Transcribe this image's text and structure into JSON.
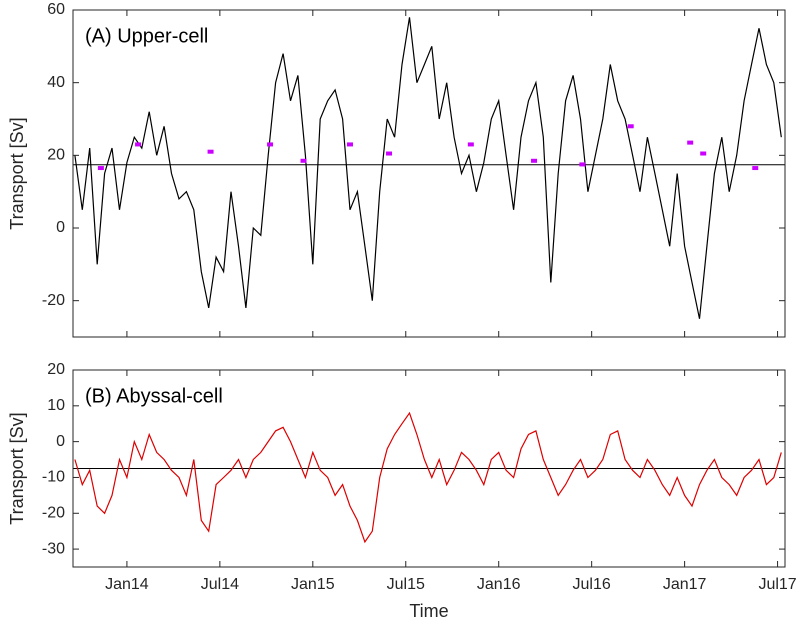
{
  "chart_data": [
    {
      "type": "line",
      "title": "(A) Upper-cell",
      "ylabel": "Transport [Sv]",
      "xlim": [
        2013.71,
        2017.54
      ],
      "ylim": [
        -30,
        60
      ],
      "yticks": [
        -20,
        0,
        20,
        40,
        60
      ],
      "reference_line": 17.4,
      "x": [
        2013.72,
        2013.76,
        2013.8,
        2013.84,
        2013.88,
        2013.92,
        2013.96,
        2014.0,
        2014.04,
        2014.08,
        2014.12,
        2014.16,
        2014.2,
        2014.24,
        2014.28,
        2014.32,
        2014.36,
        2014.4,
        2014.44,
        2014.48,
        2014.52,
        2014.56,
        2014.6,
        2014.64,
        2014.68,
        2014.72,
        2014.76,
        2014.8,
        2014.84,
        2014.88,
        2014.92,
        2014.96,
        2015.0,
        2015.04,
        2015.08,
        2015.12,
        2015.16,
        2015.2,
        2015.24,
        2015.28,
        2015.32,
        2015.36,
        2015.4,
        2015.44,
        2015.48,
        2015.52,
        2015.56,
        2015.6,
        2015.64,
        2015.68,
        2015.72,
        2015.76,
        2015.8,
        2015.84,
        2015.88,
        2015.92,
        2015.96,
        2016.0,
        2016.04,
        2016.08,
        2016.12,
        2016.16,
        2016.2,
        2016.24,
        2016.28,
        2016.32,
        2016.36,
        2016.4,
        2016.44,
        2016.48,
        2016.52,
        2016.56,
        2016.6,
        2016.64,
        2016.68,
        2016.72,
        2016.76,
        2016.8,
        2016.84,
        2016.88,
        2016.92,
        2016.96,
        2017.0,
        2017.04,
        2017.08,
        2017.12,
        2017.16,
        2017.2,
        2017.24,
        2017.28,
        2017.32,
        2017.36,
        2017.4,
        2017.44,
        2017.48,
        2017.52
      ],
      "series": [
        {
          "color": "#000000",
          "values": [
            20,
            5,
            22,
            -10,
            15,
            22,
            5,
            18,
            25,
            22,
            32,
            20,
            28,
            15,
            8,
            10,
            5,
            -12,
            -22,
            -8,
            -12,
            10,
            -5,
            -22,
            0,
            -2,
            20,
            40,
            48,
            35,
            42,
            20,
            -10,
            30,
            35,
            38,
            30,
            5,
            10,
            -5,
            -20,
            10,
            30,
            25,
            45,
            58,
            40,
            45,
            50,
            30,
            40,
            25,
            15,
            20,
            10,
            18,
            30,
            35,
            20,
            5,
            25,
            35,
            40,
            25,
            -15,
            15,
            35,
            42,
            30,
            10,
            20,
            30,
            45,
            35,
            30,
            20,
            10,
            25,
            15,
            5,
            -5,
            15,
            -5,
            -15,
            -25,
            -5,
            15,
            25,
            10,
            20,
            35,
            45,
            55,
            45,
            40,
            25
          ]
        }
      ],
      "markers": {
        "color": "#cc00ff",
        "x": [
          2013.86,
          2014.06,
          2014.45,
          2014.77,
          2014.95,
          2015.2,
          2015.41,
          2015.85,
          2016.19,
          2016.45,
          2016.71,
          2017.03,
          2017.1,
          2017.38
        ],
        "y": [
          16.5,
          23,
          21,
          23,
          18.5,
          23,
          20.5,
          23,
          18.5,
          17.5,
          28,
          23.5,
          20.5,
          16.5
        ]
      }
    },
    {
      "type": "line",
      "title": "(B) Abyssal-cell",
      "ylabel": "Transport [Sv]",
      "xlabel": "Time",
      "xlim": [
        2013.71,
        2017.54
      ],
      "ylim": [
        -35,
        20
      ],
      "yticks": [
        -30,
        -20,
        -10,
        0,
        10,
        20
      ],
      "xticks": [
        {
          "value": 2014.0,
          "label": "Jan14"
        },
        {
          "value": 2014.5,
          "label": "Jul14"
        },
        {
          "value": 2015.0,
          "label": "Jan15"
        },
        {
          "value": 2015.5,
          "label": "Jul15"
        },
        {
          "value": 2016.0,
          "label": "Jan16"
        },
        {
          "value": 2016.5,
          "label": "Jul16"
        },
        {
          "value": 2017.0,
          "label": "Jan17"
        },
        {
          "value": 2017.5,
          "label": "Jul17"
        }
      ],
      "reference_line": -7.5,
      "x": [
        2013.72,
        2013.76,
        2013.8,
        2013.84,
        2013.88,
        2013.92,
        2013.96,
        2014.0,
        2014.04,
        2014.08,
        2014.12,
        2014.16,
        2014.2,
        2014.24,
        2014.28,
        2014.32,
        2014.36,
        2014.4,
        2014.44,
        2014.48,
        2014.52,
        2014.56,
        2014.6,
        2014.64,
        2014.68,
        2014.72,
        2014.76,
        2014.8,
        2014.84,
        2014.88,
        2014.92,
        2014.96,
        2015.0,
        2015.04,
        2015.08,
        2015.12,
        2015.16,
        2015.2,
        2015.24,
        2015.28,
        2015.32,
        2015.36,
        2015.4,
        2015.44,
        2015.48,
        2015.52,
        2015.56,
        2015.6,
        2015.64,
        2015.68,
        2015.72,
        2015.76,
        2015.8,
        2015.84,
        2015.88,
        2015.92,
        2015.96,
        2016.0,
        2016.04,
        2016.08,
        2016.12,
        2016.16,
        2016.2,
        2016.24,
        2016.28,
        2016.32,
        2016.36,
        2016.4,
        2016.44,
        2016.48,
        2016.52,
        2016.56,
        2016.6,
        2016.64,
        2016.68,
        2016.72,
        2016.76,
        2016.8,
        2016.84,
        2016.88,
        2016.92,
        2016.96,
        2017.0,
        2017.04,
        2017.08,
        2017.12,
        2017.16,
        2017.2,
        2017.24,
        2017.28,
        2017.32,
        2017.36,
        2017.4,
        2017.44,
        2017.48,
        2017.52
      ],
      "series": [
        {
          "color": "#dd0000",
          "values": [
            -5,
            -12,
            -8,
            -18,
            -20,
            -15,
            -5,
            -10,
            0,
            -5,
            2,
            -3,
            -5,
            -8,
            -10,
            -15,
            -5,
            -22,
            -25,
            -12,
            -10,
            -8,
            -5,
            -10,
            -5,
            -3,
            0,
            3,
            4,
            0,
            -5,
            -10,
            -3,
            -8,
            -10,
            -15,
            -12,
            -18,
            -22,
            -28,
            -25,
            -10,
            -2,
            2,
            5,
            8,
            2,
            -5,
            -10,
            -5,
            -12,
            -8,
            -3,
            -5,
            -8,
            -12,
            -5,
            -3,
            -8,
            -10,
            -2,
            2,
            3,
            -5,
            -10,
            -15,
            -12,
            -8,
            -5,
            -10,
            -8,
            -5,
            2,
            3,
            -5,
            -8,
            -10,
            -5,
            -8,
            -12,
            -15,
            -10,
            -15,
            -18,
            -12,
            -8,
            -5,
            -10,
            -12,
            -15,
            -10,
            -8,
            -5,
            -12,
            -10,
            -3
          ]
        }
      ]
    }
  ]
}
